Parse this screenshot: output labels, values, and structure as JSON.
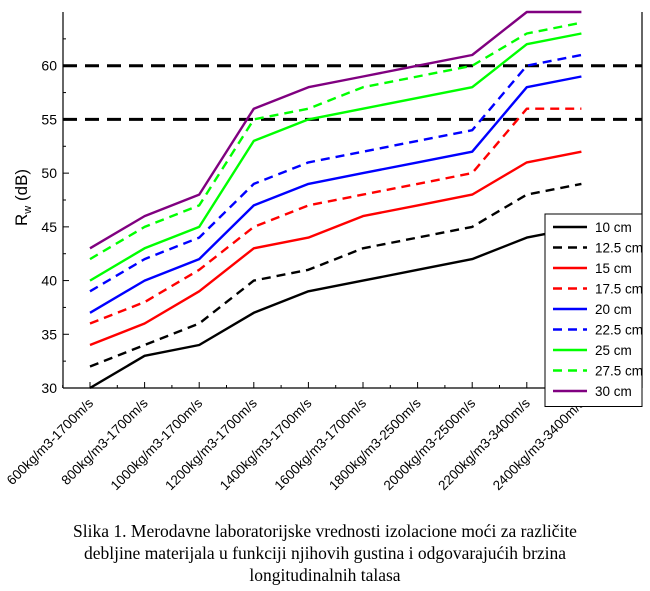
{
  "chart_data": {
    "type": "line",
    "ylabel_main": "R",
    "ylabel_sub": "w",
    "ylabel_rest": " (dB)",
    "ylim": [
      30,
      65
    ],
    "yticks": [
      30,
      35,
      40,
      45,
      50,
      55,
      60
    ],
    "categories": [
      "600kg/m3-1700m/s",
      "800kg/m3-1700m/s",
      "1000kg/m3-1700m/s",
      "1200kg/m3-1700m/s",
      "1400kg/m3-1700m/s",
      "1600kg/m3-1700m/s",
      "1800kg/m3-2500m/s",
      "2000kg/m3-2500m/s",
      "2200kg/m3-3400m/s",
      "2400kg/m3-3400m/s"
    ],
    "reference_lines": [
      55,
      60
    ],
    "legend_position": "bottom-right",
    "series": [
      {
        "name": "10 cm",
        "color": "#000000",
        "dash": false,
        "values": [
          30,
          33,
          34,
          37,
          39,
          40,
          41,
          42,
          44,
          45
        ]
      },
      {
        "name": "12.5 cm",
        "color": "#000000",
        "dash": true,
        "values": [
          32,
          34,
          36,
          40,
          41,
          43,
          44,
          45,
          48,
          49
        ]
      },
      {
        "name": "15 cm",
        "color": "#ff0000",
        "dash": false,
        "values": [
          34,
          36,
          39,
          43,
          44,
          46,
          47,
          48,
          51,
          52
        ]
      },
      {
        "name": "17.5 cm",
        "color": "#ff0000",
        "dash": true,
        "values": [
          36,
          38,
          41,
          45,
          47,
          48,
          49,
          50,
          56,
          56
        ]
      },
      {
        "name": "20 cm",
        "color": "#0000ff",
        "dash": false,
        "values": [
          37,
          40,
          42,
          47,
          49,
          50,
          51,
          52,
          58,
          59
        ]
      },
      {
        "name": "22.5 cm",
        "color": "#0000ff",
        "dash": true,
        "values": [
          39,
          42,
          44,
          49,
          51,
          52,
          53,
          54,
          60,
          61
        ]
      },
      {
        "name": "25 cm",
        "color": "#00ff00",
        "dash": false,
        "values": [
          40,
          43,
          45,
          53,
          55,
          56,
          57,
          58,
          62,
          63
        ]
      },
      {
        "name": "27.5 cm",
        "color": "#00ff00",
        "dash": true,
        "values": [
          42,
          45,
          47,
          55,
          56,
          58,
          59,
          60,
          63,
          64
        ]
      },
      {
        "name": "30 cm",
        "color": "#800080",
        "dash": false,
        "values": [
          43,
          46,
          48,
          56,
          58,
          59,
          60,
          61,
          65,
          65
        ]
      }
    ]
  },
  "caption": {
    "line1": "Slika 1. Merodavne laboratorijske vrednosti izolacione moći za različite",
    "line2": "debljine materijala u funkciji njihovih gustina i odgovarajućih brzina",
    "line3": "longitudinalnih talasa"
  }
}
